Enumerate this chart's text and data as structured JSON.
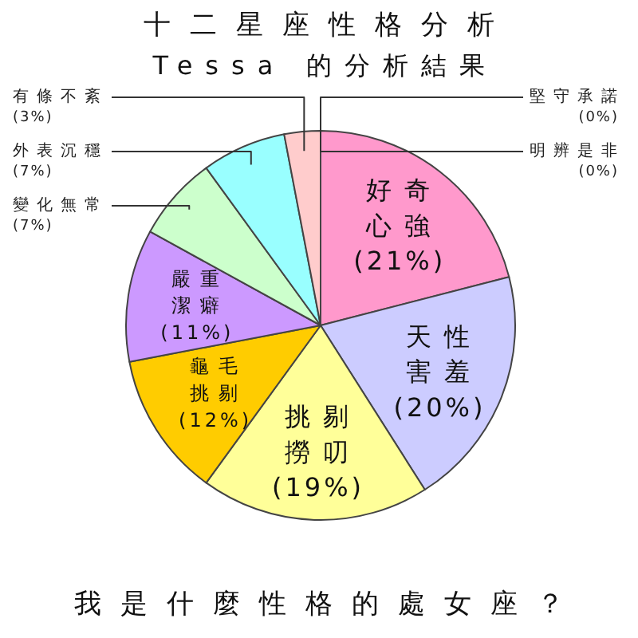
{
  "chart_data": {
    "type": "pie",
    "title": "十二星座性格分析",
    "subtitle": "Tessa 的分析結果",
    "categories": [
      "堅守承諾",
      "明辨是非",
      "好奇心強",
      "天性害羞",
      "挑剔撈叨",
      "龜毛挑剔",
      "嚴重潔癖",
      "變化無常",
      "外表沉穩",
      "有條不紊"
    ],
    "values": [
      0,
      0,
      21,
      20,
      19,
      12,
      11,
      7,
      7,
      3
    ],
    "colors": [
      "#ff99cc",
      "#ff99cc",
      "#ff99cc",
      "#ccccff",
      "#ffff99",
      "#ffcc00",
      "#cc99ff",
      "#ccffcc",
      "#99ffff",
      "#ffcccc"
    ],
    "value_labels": [
      "(0%)",
      "(0%)",
      "(21%)",
      "(20%)",
      "(19%)",
      "(12%)",
      "(11%)",
      "(7%)",
      "(7%)",
      "(3%)"
    ],
    "annotations": [
      "我是什麼性格的處女座？"
    ]
  }
}
